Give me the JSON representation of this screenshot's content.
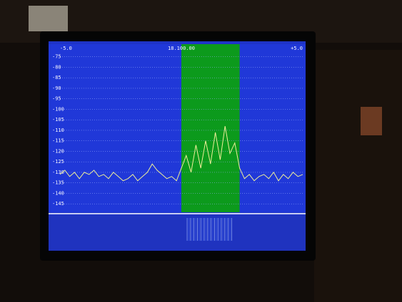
{
  "chart_data": {
    "type": "line",
    "xticks": [
      {
        "value": -5,
        "label": "-5.0"
      },
      {
        "value": 0,
        "label": "18.100.00"
      },
      {
        "value": 5,
        "label": "+5.0"
      }
    ],
    "xlim": [
      -5,
      5
    ],
    "ylim": [
      -149,
      -69
    ],
    "yticks": [
      -75,
      -80,
      -85,
      -90,
      -95,
      -100,
      -105,
      -110,
      -115,
      -120,
      -125,
      -130,
      -135,
      -140,
      -145
    ],
    "grid": true,
    "highlight": [
      0,
      2.4
    ],
    "highlight_color": "#0c9a1c",
    "background": "#2038d8",
    "series": [
      {
        "color": "#eeee99",
        "x": [
          -5,
          -4.8,
          -4.6,
          -4.4,
          -4.2,
          -4,
          -3.8,
          -3.6,
          -3.4,
          -3.2,
          -3,
          -2.8,
          -2.6,
          -2.4,
          -2.2,
          -2,
          -1.8,
          -1.6,
          -1.4,
          -1.2,
          -1,
          -0.8,
          -0.6,
          -0.4,
          -0.2,
          0,
          0.2,
          0.4,
          0.6,
          0.8,
          1,
          1.2,
          1.4,
          1.6,
          1.8,
          2,
          2.2,
          2.4,
          2.6,
          2.8,
          3,
          3.2,
          3.4,
          3.6,
          3.8,
          4,
          4.2,
          4.4,
          4.6,
          4.8,
          5
        ],
        "values": [
          -131,
          -129,
          -132,
          -130,
          -133,
          -130,
          -131,
          -129,
          -132,
          -131,
          -133,
          -130,
          -132,
          -134,
          -133,
          -131,
          -134,
          -132,
          -130,
          -126,
          -129,
          -131,
          -133,
          -132,
          -134,
          -128,
          -122,
          -130,
          -117,
          -128,
          -115,
          -126,
          -111,
          -124,
          -108,
          -121,
          -116,
          -128,
          -133,
          -131,
          -134,
          -132,
          -131,
          -133,
          -130,
          -134,
          -131,
          -133,
          -130,
          -132,
          -131
        ]
      }
    ]
  }
}
